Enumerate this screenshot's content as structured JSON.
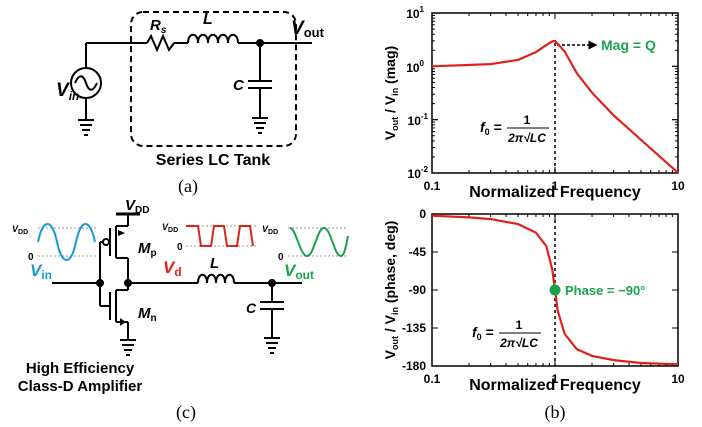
{
  "panel_a": {
    "vin_main": "V",
    "vin_sub": "in",
    "rs_main": "R",
    "rs_sub": "s",
    "l_label": "L",
    "c_label": "C",
    "vout_main": "V",
    "vout_sub": "out",
    "tank_caption": "Series LC Tank",
    "panel_label": "(a)"
  },
  "panel_c": {
    "vdd_top_main": "V",
    "vdd_top_sub": "DD",
    "mp_main": "M",
    "mp_sub": "p",
    "mn_main": "M",
    "mn_sub": "n",
    "vd_main": "V",
    "vd_sub": "d",
    "l_label": "L",
    "c_label": "C",
    "vin_main": "V",
    "vin_sub": "in",
    "vout_main": "V",
    "vout_sub": "out",
    "wave_vdd_main": "V",
    "wave_vdd_sub": "DD",
    "wave_zero": "0",
    "caption_line1": "High Efficiency",
    "caption_line2": "Class-D Amplifier",
    "panel_label": "(c)",
    "colors": {
      "vin": "#1a9ad7",
      "vd": "#e0201b",
      "vout": "#1aa34a"
    }
  },
  "panel_b": {
    "panel_label": "(b)",
    "mag_plot": {
      "ylabel_parts": [
        "V",
        "out",
        " / V",
        "in",
        " (mag)"
      ],
      "xlabel": "Normalized Frequency",
      "xticks": [
        "0.1",
        "1",
        "10"
      ],
      "yticks": [
        "10",
        "10",
        "10",
        "10"
      ],
      "ytick_exps": [
        "1",
        "0",
        "-1",
        "-2"
      ],
      "annotation": "Mag = Q",
      "f0_main": "f",
      "f0_sub": "0",
      "f0_num": "1",
      "f0_den": "2π√LC"
    },
    "phase_plot": {
      "ylabel_parts": [
        "V",
        "out",
        " / V",
        "in",
        " (phase, deg)"
      ],
      "xlabel": "Normalized Frequency",
      "xticks": [
        "0.1",
        "1",
        "10"
      ],
      "yticks": [
        "0",
        "-45",
        "-90",
        "-135",
        "-180"
      ],
      "annotation": "Phase = −90°",
      "f0_main": "f",
      "f0_sub": "0",
      "f0_num": "1",
      "f0_den": "2π√LC"
    },
    "colors": {
      "curve": "#e0201b",
      "marker": "#1aa34a"
    }
  },
  "chart_data": [
    {
      "type": "line",
      "xlabel": "Normalized Frequency",
      "ylabel": "Vout / Vin (mag)",
      "xscale": "log",
      "yscale": "log",
      "xlim": [
        0.1,
        10
      ],
      "ylim": [
        0.01,
        10
      ],
      "series": [
        {
          "x": [
            0.1,
            0.3,
            0.5,
            0.7,
            0.85,
            0.95,
            1.0,
            1.2,
            1.5,
            2,
            3,
            5,
            10
          ],
          "y": [
            1.0,
            1.1,
            1.32,
            1.85,
            2.5,
            2.95,
            3.0,
            1.9,
            0.75,
            0.32,
            0.12,
            0.042,
            0.0101
          ]
        }
      ],
      "annotations": [
        "Mag = Q"
      ]
    },
    {
      "type": "line",
      "xlabel": "Normalized Frequency",
      "ylabel": "Vout / Vin (phase, deg)",
      "xscale": "log",
      "xlim": [
        0.1,
        10
      ],
      "ylim": [
        -180,
        0
      ],
      "series": [
        {
          "x": [
            0.1,
            0.2,
            0.3,
            0.5,
            0.7,
            0.85,
            0.95,
            1.0,
            1.05,
            1.2,
            1.5,
            2,
            3,
            5,
            10
          ],
          "y": [
            -2,
            -4,
            -6,
            -12,
            -22,
            -38,
            -66,
            -90,
            -114,
            -142,
            -160,
            -168,
            -173,
            -176.5,
            -178
          ]
        }
      ],
      "annotations": [
        "Phase = −90°"
      ]
    }
  ]
}
